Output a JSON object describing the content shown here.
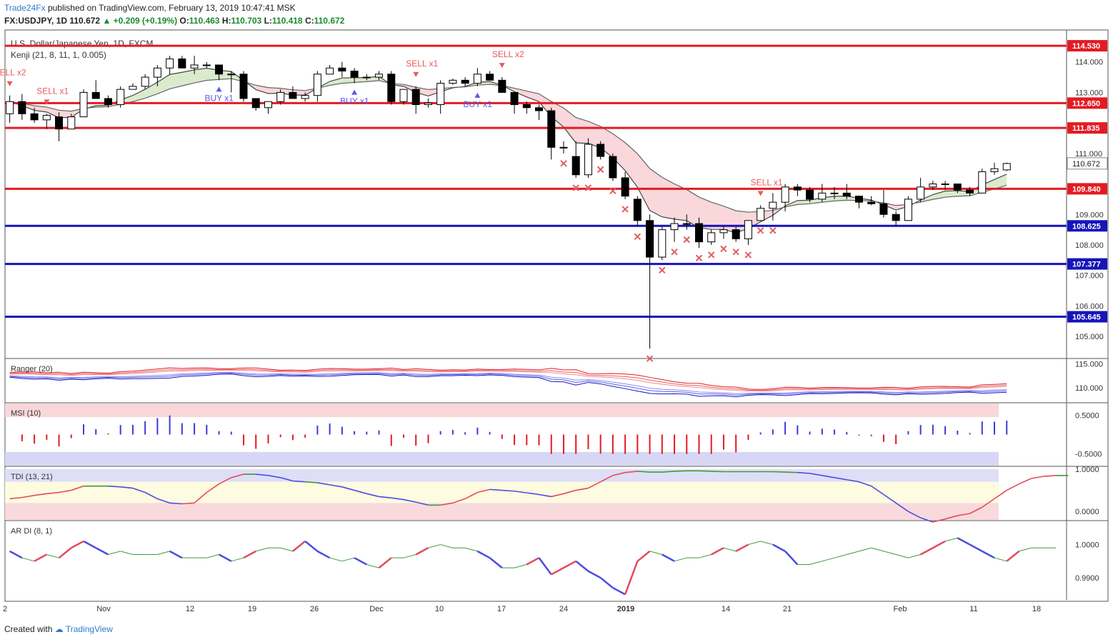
{
  "header": {
    "publisher": "Trade24Fx",
    "published_text": "published on TradingView.com, February 13, 2019 10:47:41 MSK",
    "symbol": "FX:USDJPY, 1D",
    "last": "110.672",
    "change": "+0.209 (+0.19%)",
    "o_label": "O:",
    "o": "110.463",
    "h_label": "H:",
    "h": "110.703",
    "l_label": "L:",
    "l": "110.418",
    "c_label": "C:",
    "c": "110.672"
  },
  "footer": {
    "created_with": "Created with",
    "brand": "TradingView"
  },
  "colors": {
    "resistance": "#e31b23",
    "support": "#1515b8",
    "sell": "#e85a5a",
    "buy": "#5a5ae8",
    "bg": "#ffffff"
  },
  "chart_data": [
    {
      "type": "candlestick",
      "title": "U.S. Dollar/Japanese Yen, 1D, FXCM",
      "subtitle": "Kenji (21, 8, 11, 1, 0.005)",
      "ylim": [
        104.3,
        115.0
      ],
      "y_ticks": [
        "114.000",
        "113.000",
        "111.000",
        "109.000",
        "108.000",
        "107.000",
        "106.000",
        "105.000"
      ],
      "x_ticks": [
        "2",
        "Nov",
        "12",
        "19",
        "26",
        "Dec",
        "10",
        "17",
        "24",
        "2019",
        "14",
        "21",
        "Feb",
        "11",
        "18"
      ],
      "levels": [
        {
          "label": "114.530",
          "value": 114.53,
          "color": "resistance"
        },
        {
          "label": "112.650",
          "value": 112.65,
          "color": "resistance"
        },
        {
          "label": "111.835",
          "value": 111.835,
          "color": "resistance"
        },
        {
          "label": "109.840",
          "value": 109.84,
          "color": "resistance"
        },
        {
          "label": "108.625",
          "value": 108.625,
          "color": "support"
        },
        {
          "label": "107.377",
          "value": 107.377,
          "color": "support"
        },
        {
          "label": "105.645",
          "value": 105.645,
          "color": "support"
        }
      ],
      "last_price_label": "110.672",
      "last_price": 110.672,
      "candles": [
        [
          112.3,
          112.9,
          112.0,
          112.7
        ],
        [
          112.7,
          112.95,
          112.1,
          112.3
        ],
        [
          112.3,
          112.5,
          112.0,
          112.1
        ],
        [
          112.1,
          112.3,
          111.8,
          112.25
        ],
        [
          112.2,
          112.35,
          111.4,
          111.8
        ],
        [
          111.8,
          112.3,
          111.8,
          112.2
        ],
        [
          112.2,
          113.1,
          112.2,
          113.0
        ],
        [
          113.0,
          113.4,
          112.8,
          112.8
        ],
        [
          112.8,
          112.9,
          112.5,
          112.6
        ],
        [
          112.6,
          113.2,
          112.5,
          113.1
        ],
        [
          113.1,
          113.3,
          113.1,
          113.2
        ],
        [
          113.2,
          113.6,
          113.1,
          113.5
        ],
        [
          113.5,
          113.9,
          113.2,
          113.8
        ],
        [
          113.8,
          114.2,
          113.6,
          114.1
        ],
        [
          114.1,
          114.2,
          113.9,
          113.8
        ],
        [
          113.8,
          114.2,
          113.6,
          113.9
        ],
        [
          113.9,
          114.0,
          113.8,
          113.9
        ],
        [
          113.9,
          113.9,
          113.4,
          113.6
        ],
        [
          113.6,
          113.7,
          113.0,
          113.6
        ],
        [
          113.6,
          113.7,
          112.7,
          112.8
        ],
        [
          112.8,
          112.8,
          112.4,
          112.5
        ],
        [
          112.5,
          112.7,
          112.3,
          112.7
        ],
        [
          112.7,
          113.1,
          112.6,
          113.0
        ],
        [
          113.0,
          113.2,
          112.8,
          112.8
        ],
        [
          112.8,
          113.0,
          112.7,
          112.9
        ],
        [
          112.9,
          113.7,
          112.7,
          113.6
        ],
        [
          113.6,
          113.9,
          113.6,
          113.8
        ],
        [
          113.8,
          114.0,
          113.5,
          113.7
        ],
        [
          113.7,
          113.8,
          113.3,
          113.5
        ],
        [
          113.5,
          113.6,
          113.4,
          113.5
        ],
        [
          113.5,
          113.7,
          113.4,
          113.6
        ],
        [
          113.6,
          113.7,
          112.6,
          112.7
        ],
        [
          112.7,
          113.1,
          112.6,
          113.1
        ],
        [
          113.1,
          113.2,
          112.3,
          112.6
        ],
        [
          112.6,
          112.8,
          112.5,
          112.65
        ],
        [
          112.6,
          113.4,
          112.3,
          113.3
        ],
        [
          113.3,
          113.45,
          113.25,
          113.4
        ],
        [
          113.4,
          113.5,
          113.2,
          113.3
        ],
        [
          113.3,
          113.8,
          113.2,
          113.6
        ],
        [
          113.6,
          113.7,
          113.4,
          113.4
        ],
        [
          113.4,
          113.5,
          113.0,
          113.0
        ],
        [
          113.0,
          113.0,
          112.3,
          112.6
        ],
        [
          112.6,
          112.7,
          112.3,
          112.5
        ],
        [
          112.5,
          112.6,
          112.1,
          112.4
        ],
        [
          112.4,
          112.5,
          110.8,
          111.2
        ],
        [
          111.2,
          111.4,
          111.0,
          111.2
        ],
        [
          110.9,
          111.4,
          110.2,
          110.3
        ],
        [
          110.3,
          111.5,
          110.2,
          111.3
        ],
        [
          111.3,
          111.4,
          110.8,
          110.9
        ],
        [
          110.9,
          111.0,
          110.1,
          110.2
        ],
        [
          110.2,
          110.4,
          109.5,
          109.6
        ],
        [
          109.5,
          109.6,
          108.6,
          108.8
        ],
        [
          108.8,
          109.0,
          104.6,
          107.6
        ],
        [
          107.6,
          108.6,
          107.5,
          108.5
        ],
        [
          108.5,
          108.9,
          108.1,
          108.7
        ],
        [
          108.7,
          109.0,
          108.5,
          108.7
        ],
        [
          108.7,
          108.9,
          107.9,
          108.1
        ],
        [
          108.1,
          108.5,
          108.0,
          108.4
        ],
        [
          108.4,
          108.6,
          108.2,
          108.5
        ],
        [
          108.5,
          108.6,
          108.1,
          108.2
        ],
        [
          108.2,
          108.8,
          108.0,
          108.8
        ],
        [
          108.8,
          109.3,
          108.8,
          109.2
        ],
        [
          109.2,
          109.7,
          108.8,
          109.4
        ],
        [
          109.4,
          110.0,
          109.1,
          109.9
        ],
        [
          109.9,
          110.0,
          109.6,
          109.8
        ],
        [
          109.8,
          109.9,
          109.4,
          109.5
        ],
        [
          109.5,
          110.0,
          109.4,
          109.7
        ],
        [
          109.7,
          109.9,
          109.5,
          109.7
        ],
        [
          109.7,
          110.0,
          109.5,
          109.6
        ],
        [
          109.6,
          109.6,
          109.2,
          109.4
        ],
        [
          109.4,
          109.6,
          109.3,
          109.35
        ],
        [
          109.35,
          109.8,
          108.9,
          109.0
        ],
        [
          109.0,
          109.1,
          108.6,
          108.8
        ],
        [
          108.8,
          109.6,
          108.8,
          109.5
        ],
        [
          109.5,
          110.2,
          109.4,
          109.9
        ],
        [
          109.9,
          110.1,
          109.8,
          110.0
        ],
        [
          110.0,
          110.1,
          109.8,
          110.0
        ],
        [
          110.0,
          110.0,
          109.7,
          109.8
        ],
        [
          109.8,
          109.9,
          109.6,
          109.7
        ],
        [
          109.7,
          110.5,
          109.7,
          110.4
        ],
        [
          110.4,
          110.7,
          110.3,
          110.5
        ],
        [
          110.46,
          110.7,
          110.42,
          110.67
        ]
      ],
      "annotations": [
        {
          "text": "ELL x2",
          "kind": "sell",
          "bar": 0
        },
        {
          "text": "SELL x1",
          "kind": "sell",
          "bar": 3
        },
        {
          "text": "BUY x1",
          "kind": "buy",
          "bar": 17
        },
        {
          "text": "BUY x1",
          "kind": "buy",
          "bar": 28
        },
        {
          "text": "SELL x1",
          "kind": "sell",
          "bar": 33
        },
        {
          "text": "BUY x1",
          "kind": "buy",
          "bar": 38
        },
        {
          "text": "SELL x2",
          "kind": "sell",
          "bar": 40
        },
        {
          "text": "SELL x1",
          "kind": "sell",
          "bar": 61
        }
      ],
      "x_marks": [
        45,
        46,
        47,
        48,
        49,
        50,
        51,
        52,
        53,
        54,
        55,
        56,
        57,
        58,
        59,
        60,
        61,
        62
      ]
    },
    {
      "type": "line",
      "title": "Ranger (20)",
      "ylim": [
        107.0,
        116.0
      ],
      "y_ticks": [
        "115.000",
        "110.000"
      ]
    },
    {
      "type": "histogram",
      "title": "MSI (10)",
      "ylim": [
        -0.8,
        0.8
      ],
      "y_ticks": [
        "0.5000",
        "-0.5000"
      ]
    },
    {
      "type": "line",
      "title": "TDI (13, 21)",
      "ylim": [
        -0.2,
        1.05
      ],
      "y_ticks": [
        "1.0000",
        "0.0000"
      ],
      "values": [
        0.3,
        0.33,
        0.38,
        0.42,
        0.45,
        0.5,
        0.6,
        0.6,
        0.6,
        0.58,
        0.55,
        0.45,
        0.3,
        0.2,
        0.18,
        0.2,
        0.45,
        0.65,
        0.8,
        0.88,
        0.88,
        0.85,
        0.8,
        0.72,
        0.7,
        0.68,
        0.63,
        0.58,
        0.5,
        0.42,
        0.35,
        0.32,
        0.28,
        0.22,
        0.15,
        0.15,
        0.2,
        0.3,
        0.45,
        0.52,
        0.5,
        0.48,
        0.44,
        0.4,
        0.35,
        0.42,
        0.5,
        0.55,
        0.7,
        0.85,
        0.92,
        0.95,
        0.93,
        0.93,
        0.95,
        0.96,
        0.96,
        0.95,
        0.94,
        0.94,
        0.94,
        0.94,
        0.94,
        0.93,
        0.92,
        0.9,
        0.85,
        0.8,
        0.75,
        0.7,
        0.6,
        0.4,
        0.2,
        0.0,
        -0.15,
        -0.25,
        -0.18,
        -0.1,
        -0.05,
        0.1,
        0.3,
        0.5,
        0.65,
        0.78,
        0.83,
        0.85,
        0.85
      ]
    },
    {
      "type": "line",
      "title": "AR DI (8, 1)",
      "ylim": [
        0.984,
        1.007
      ],
      "y_ticks": [
        "1.0000",
        "0.9900"
      ],
      "values": [
        0.998,
        0.996,
        0.995,
        0.997,
        0.996,
        0.999,
        1.001,
        0.999,
        0.997,
        0.998,
        0.997,
        0.997,
        0.997,
        0.998,
        0.996,
        0.996,
        0.996,
        0.997,
        0.995,
        0.996,
        0.998,
        0.999,
        0.999,
        0.998,
        1.001,
        0.998,
        0.996,
        0.995,
        0.996,
        0.994,
        0.993,
        0.996,
        0.996,
        0.997,
        0.999,
        1.0,
        0.999,
        0.999,
        0.998,
        0.996,
        0.993,
        0.993,
        0.994,
        0.996,
        0.991,
        0.993,
        0.995,
        0.992,
        0.99,
        0.987,
        0.985,
        0.995,
        0.998,
        0.997,
        0.995,
        0.996,
        0.996,
        0.997,
        0.999,
        0.998,
        1.0,
        1.001,
        1.0,
        0.998,
        0.994,
        0.994,
        0.995,
        0.996,
        0.997,
        0.998,
        0.999,
        0.998,
        0.997,
        0.996,
        0.997,
        0.999,
        1.001,
        1.002,
        1.0,
        0.998,
        0.996,
        0.995,
        0.998,
        0.999,
        0.999,
        0.999
      ]
    }
  ]
}
